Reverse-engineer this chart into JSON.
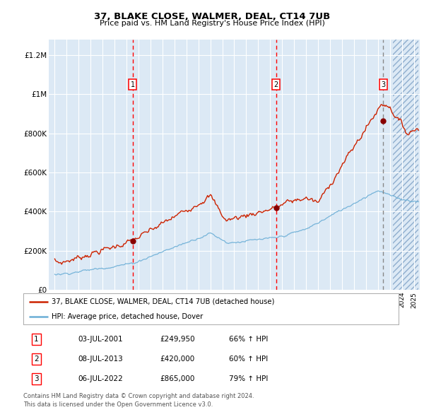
{
  "title": "37, BLAKE CLOSE, WALMER, DEAL, CT14 7UB",
  "subtitle": "Price paid vs. HM Land Registry's House Price Index (HPI)",
  "background_color": "#dce9f5",
  "hpi_line_color": "#6baed6",
  "price_line_color": "#cc2200",
  "yticks": [
    0,
    200000,
    400000,
    600000,
    800000,
    1000000,
    1200000
  ],
  "ytick_labels": [
    "£0",
    "£200K",
    "£400K",
    "£600K",
    "£800K",
    "£1M",
    "£1.2M"
  ],
  "xmin": 1994.5,
  "xmax": 2025.5,
  "ymin": 0,
  "ymax": 1280000,
  "sale_dates": [
    2001.5,
    2013.5,
    2022.45
  ],
  "sale_prices": [
    249950,
    420000,
    865000
  ],
  "sale_labels": [
    "1",
    "2",
    "3"
  ],
  "sale_date_strs": [
    "03-JUL-2001",
    "08-JUL-2013",
    "06-JUL-2022"
  ],
  "sale_pct": [
    "66%",
    "60%",
    "79%"
  ],
  "legend_label1": "37, BLAKE CLOSE, WALMER, DEAL, CT14 7UB (detached house)",
  "legend_label2": "HPI: Average price, detached house, Dover",
  "footer1": "Contains HM Land Registry data © Crown copyright and database right 2024.",
  "footer2": "This data is licensed under the Open Government Licence v3.0."
}
